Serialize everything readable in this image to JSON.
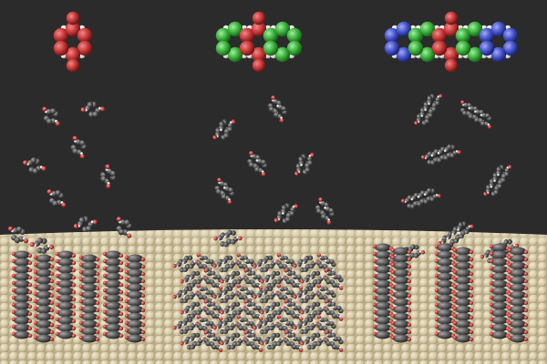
{
  "scene": {
    "title": "",
    "background_color": "#2b2b2b",
    "surface_color": "#d2c7a6",
    "surface_shadow": "#b9ab86",
    "surface_highlight": "#eee6cf",
    "atom_colors": {
      "carbon": "#5a5a5a",
      "carbon_highlight": "#9a9a9a",
      "oxygen": "#c94b4b",
      "hydrogen": "#e8e8e8",
      "segment_red": "#d24141",
      "segment_green": "#41b641",
      "segment_blue": "#4a58d0"
    },
    "molecules": [
      {
        "name": "small-molecule-model",
        "segments": [
          "red"
        ]
      },
      {
        "name": "medium-molecule-model",
        "segments": [
          "green",
          "red",
          "green"
        ]
      },
      {
        "name": "large-molecule-model",
        "segments": [
          "blue",
          "green",
          "red",
          "green",
          "blue"
        ]
      }
    ],
    "assemblies": [
      {
        "name": "small-molecule-assembly",
        "arrangement": "upright-stacks"
      },
      {
        "name": "medium-molecule-assembly",
        "arrangement": "tilted-herringbone"
      },
      {
        "name": "large-molecule-assembly",
        "arrangement": "upright-stacks"
      }
    ]
  }
}
